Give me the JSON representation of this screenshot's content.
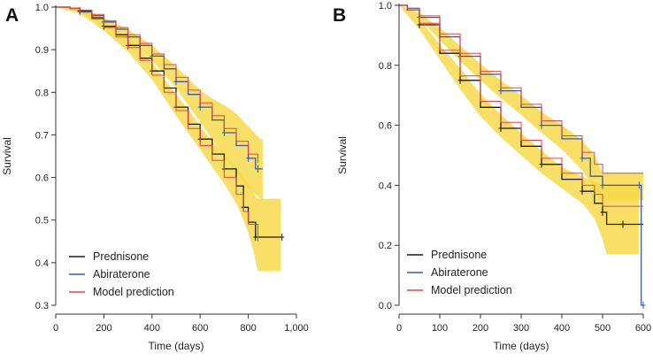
{
  "colors": {
    "prednisone": "#1a1a1a",
    "abiraterone": "#3b58a8",
    "model": "#e0474c",
    "band": "#f7d94c",
    "axis": "#333333"
  },
  "chart_data": [
    {
      "panel_label": "A",
      "type": "line",
      "xlabel": "Time (days)",
      "ylabel": "Survival",
      "xlim": [
        0,
        1000
      ],
      "ylim": [
        0.3,
        1.0
      ],
      "xticks": [
        0,
        200,
        400,
        600,
        800,
        1000
      ],
      "xtick_labels": [
        "0",
        "200",
        "400",
        "600",
        "800",
        "1,000"
      ],
      "yticks": [
        0.3,
        0.4,
        0.5,
        0.6,
        0.7,
        0.8,
        0.9,
        1.0
      ],
      "ytick_labels": [
        "0.3",
        "0.4",
        "0.5",
        "0.6",
        "0.7",
        "0.8",
        "0.9",
        "1.0"
      ],
      "legend_position": "bottom-left",
      "series": [
        {
          "name": "Prednisone",
          "x": [
            0,
            60,
            100,
            150,
            200,
            250,
            300,
            350,
            400,
            450,
            500,
            550,
            600,
            650,
            700,
            750,
            780,
            800,
            830,
            840,
            940
          ],
          "y": [
            1.0,
            0.997,
            0.99,
            0.975,
            0.955,
            0.935,
            0.91,
            0.88,
            0.85,
            0.81,
            0.765,
            0.725,
            0.69,
            0.655,
            0.62,
            0.58,
            0.53,
            0.495,
            0.46,
            0.46,
            0.46
          ]
        },
        {
          "name": "Abiraterone",
          "x": [
            0,
            60,
            100,
            150,
            200,
            250,
            300,
            350,
            400,
            450,
            500,
            550,
            600,
            650,
            700,
            750,
            800,
            830,
            840,
            860
          ],
          "y": [
            1.0,
            0.997,
            0.992,
            0.98,
            0.965,
            0.948,
            0.93,
            0.91,
            0.885,
            0.855,
            0.825,
            0.795,
            0.765,
            0.735,
            0.705,
            0.675,
            0.645,
            0.62,
            0.62,
            0.62
          ]
        },
        {
          "name": "Model prediction",
          "role": "model",
          "lines": [
            {
              "x": [
                0,
                60,
                100,
                150,
                200,
                250,
                300,
                350,
                400,
                450,
                500,
                550,
                600,
                650,
                700,
                750,
                800,
                840
              ],
              "y": [
                1.0,
                0.998,
                0.993,
                0.983,
                0.968,
                0.952,
                0.935,
                0.915,
                0.89,
                0.865,
                0.835,
                0.805,
                0.775,
                0.745,
                0.715,
                0.685,
                0.655,
                0.635
              ]
            },
            {
              "x": [
                0,
                60,
                100,
                150,
                200,
                250,
                300,
                350,
                400,
                450,
                500,
                550,
                600,
                650,
                700,
                750,
                780,
                800,
                840
              ],
              "y": [
                1.0,
                0.996,
                0.988,
                0.972,
                0.952,
                0.93,
                0.905,
                0.875,
                0.84,
                0.8,
                0.757,
                0.715,
                0.675,
                0.64,
                0.6,
                0.56,
                0.52,
                0.49,
                0.45
              ]
            }
          ]
        }
      ],
      "bands": [
        {
          "x": [
            0,
            100,
            200,
            300,
            400,
            500,
            600,
            650,
            700,
            750,
            800,
            850,
            860
          ],
          "lower": [
            1.0,
            0.988,
            0.958,
            0.92,
            0.875,
            0.81,
            0.73,
            0.69,
            0.65,
            0.61,
            0.575,
            0.55,
            0.55
          ],
          "upper": [
            1.0,
            0.998,
            0.975,
            0.948,
            0.91,
            0.86,
            0.805,
            0.785,
            0.77,
            0.75,
            0.72,
            0.69,
            0.69
          ]
        },
        {
          "x": [
            0,
            100,
            200,
            300,
            400,
            500,
            550,
            600,
            650,
            700,
            750,
            780,
            800,
            820,
            840,
            880,
            935
          ],
          "lower": [
            1.0,
            0.985,
            0.945,
            0.895,
            0.83,
            0.745,
            0.705,
            0.665,
            0.625,
            0.585,
            0.54,
            0.5,
            0.47,
            0.43,
            0.38,
            0.38,
            0.38
          ],
          "upper": [
            1.0,
            0.997,
            0.966,
            0.925,
            0.87,
            0.795,
            0.76,
            0.72,
            0.685,
            0.655,
            0.625,
            0.6,
            0.585,
            0.565,
            0.55,
            0.55,
            0.55
          ]
        }
      ],
      "legend": [
        "Prednisone",
        "Abiraterone",
        "Model prediction"
      ]
    },
    {
      "panel_label": "B",
      "type": "line",
      "xlabel": "Time (days)",
      "ylabel": "Survival",
      "xlim": [
        0,
        600
      ],
      "ylim": [
        0.0,
        1.0
      ],
      "xticks": [
        0,
        100,
        200,
        300,
        400,
        500,
        600
      ],
      "xtick_labels": [
        "0",
        "100",
        "200",
        "300",
        "400",
        "500",
        "600"
      ],
      "yticks": [
        0.0,
        0.2,
        0.4,
        0.6,
        0.8,
        1.0
      ],
      "ytick_labels": [
        "0.0",
        "0.2",
        "0.4",
        "0.6",
        "0.8",
        "1.0"
      ],
      "legend_position": "bottom-left",
      "series": [
        {
          "name": "Prednisone",
          "x": [
            0,
            20,
            50,
            100,
            150,
            200,
            250,
            300,
            350,
            400,
            450,
            480,
            500,
            510,
            550,
            600
          ],
          "y": [
            1.0,
            0.985,
            0.935,
            0.84,
            0.75,
            0.66,
            0.59,
            0.53,
            0.47,
            0.42,
            0.38,
            0.34,
            0.31,
            0.27,
            0.27,
            0.27
          ]
        },
        {
          "name": "Abiraterone",
          "x": [
            0,
            20,
            50,
            100,
            150,
            200,
            250,
            300,
            350,
            400,
            450,
            470,
            500,
            550,
            590,
            595,
            600
          ],
          "y": [
            1.0,
            0.99,
            0.96,
            0.895,
            0.83,
            0.77,
            0.715,
            0.66,
            0.6,
            0.555,
            0.49,
            0.43,
            0.4,
            0.4,
            0.4,
            0.0,
            0.0
          ]
        },
        {
          "name": "Model prediction",
          "role": "model",
          "lines": [
            {
              "x": [
                0,
                20,
                50,
                100,
                150,
                200,
                250,
                300,
                350,
                400,
                450,
                480,
                500,
                550,
                600
              ],
              "y": [
                1.0,
                0.99,
                0.965,
                0.905,
                0.84,
                0.78,
                0.725,
                0.67,
                0.615,
                0.565,
                0.51,
                0.47,
                0.44,
                0.44,
                0.44
              ]
            },
            {
              "x": [
                0,
                20,
                50,
                100,
                150,
                200,
                250,
                300,
                350,
                400,
                450,
                480,
                500,
                550,
                600
              ],
              "y": [
                1.0,
                0.985,
                0.94,
                0.85,
                0.765,
                0.68,
                0.61,
                0.55,
                0.49,
                0.44,
                0.4,
                0.37,
                0.33,
                0.33,
                0.33
              ]
            }
          ]
        }
      ],
      "bands": [
        {
          "x": [
            0,
            50,
            100,
            150,
            200,
            250,
            300,
            350,
            400,
            450,
            480,
            500,
            550,
            600
          ],
          "lower": [
            1.0,
            0.955,
            0.885,
            0.815,
            0.75,
            0.69,
            0.635,
            0.575,
            0.52,
            0.45,
            0.39,
            0.35,
            0.35,
            0.35
          ],
          "upper": [
            1.0,
            0.975,
            0.925,
            0.865,
            0.805,
            0.75,
            0.7,
            0.645,
            0.6,
            0.55,
            0.5,
            0.44,
            0.44,
            0.44
          ]
        },
        {
          "x": [
            0,
            50,
            100,
            150,
            200,
            250,
            300,
            350,
            400,
            450,
            480,
            500,
            510,
            550,
            590
          ],
          "lower": [
            1.0,
            0.92,
            0.82,
            0.72,
            0.63,
            0.56,
            0.5,
            0.44,
            0.39,
            0.34,
            0.29,
            0.22,
            0.17,
            0.17,
            0.17
          ],
          "upper": [
            1.0,
            0.955,
            0.87,
            0.79,
            0.705,
            0.635,
            0.575,
            0.515,
            0.46,
            0.43,
            0.41,
            0.4,
            0.4,
            0.4,
            0.4
          ]
        }
      ],
      "legend": [
        "Prednisone",
        "Abiraterone",
        "Model prediction"
      ]
    }
  ]
}
